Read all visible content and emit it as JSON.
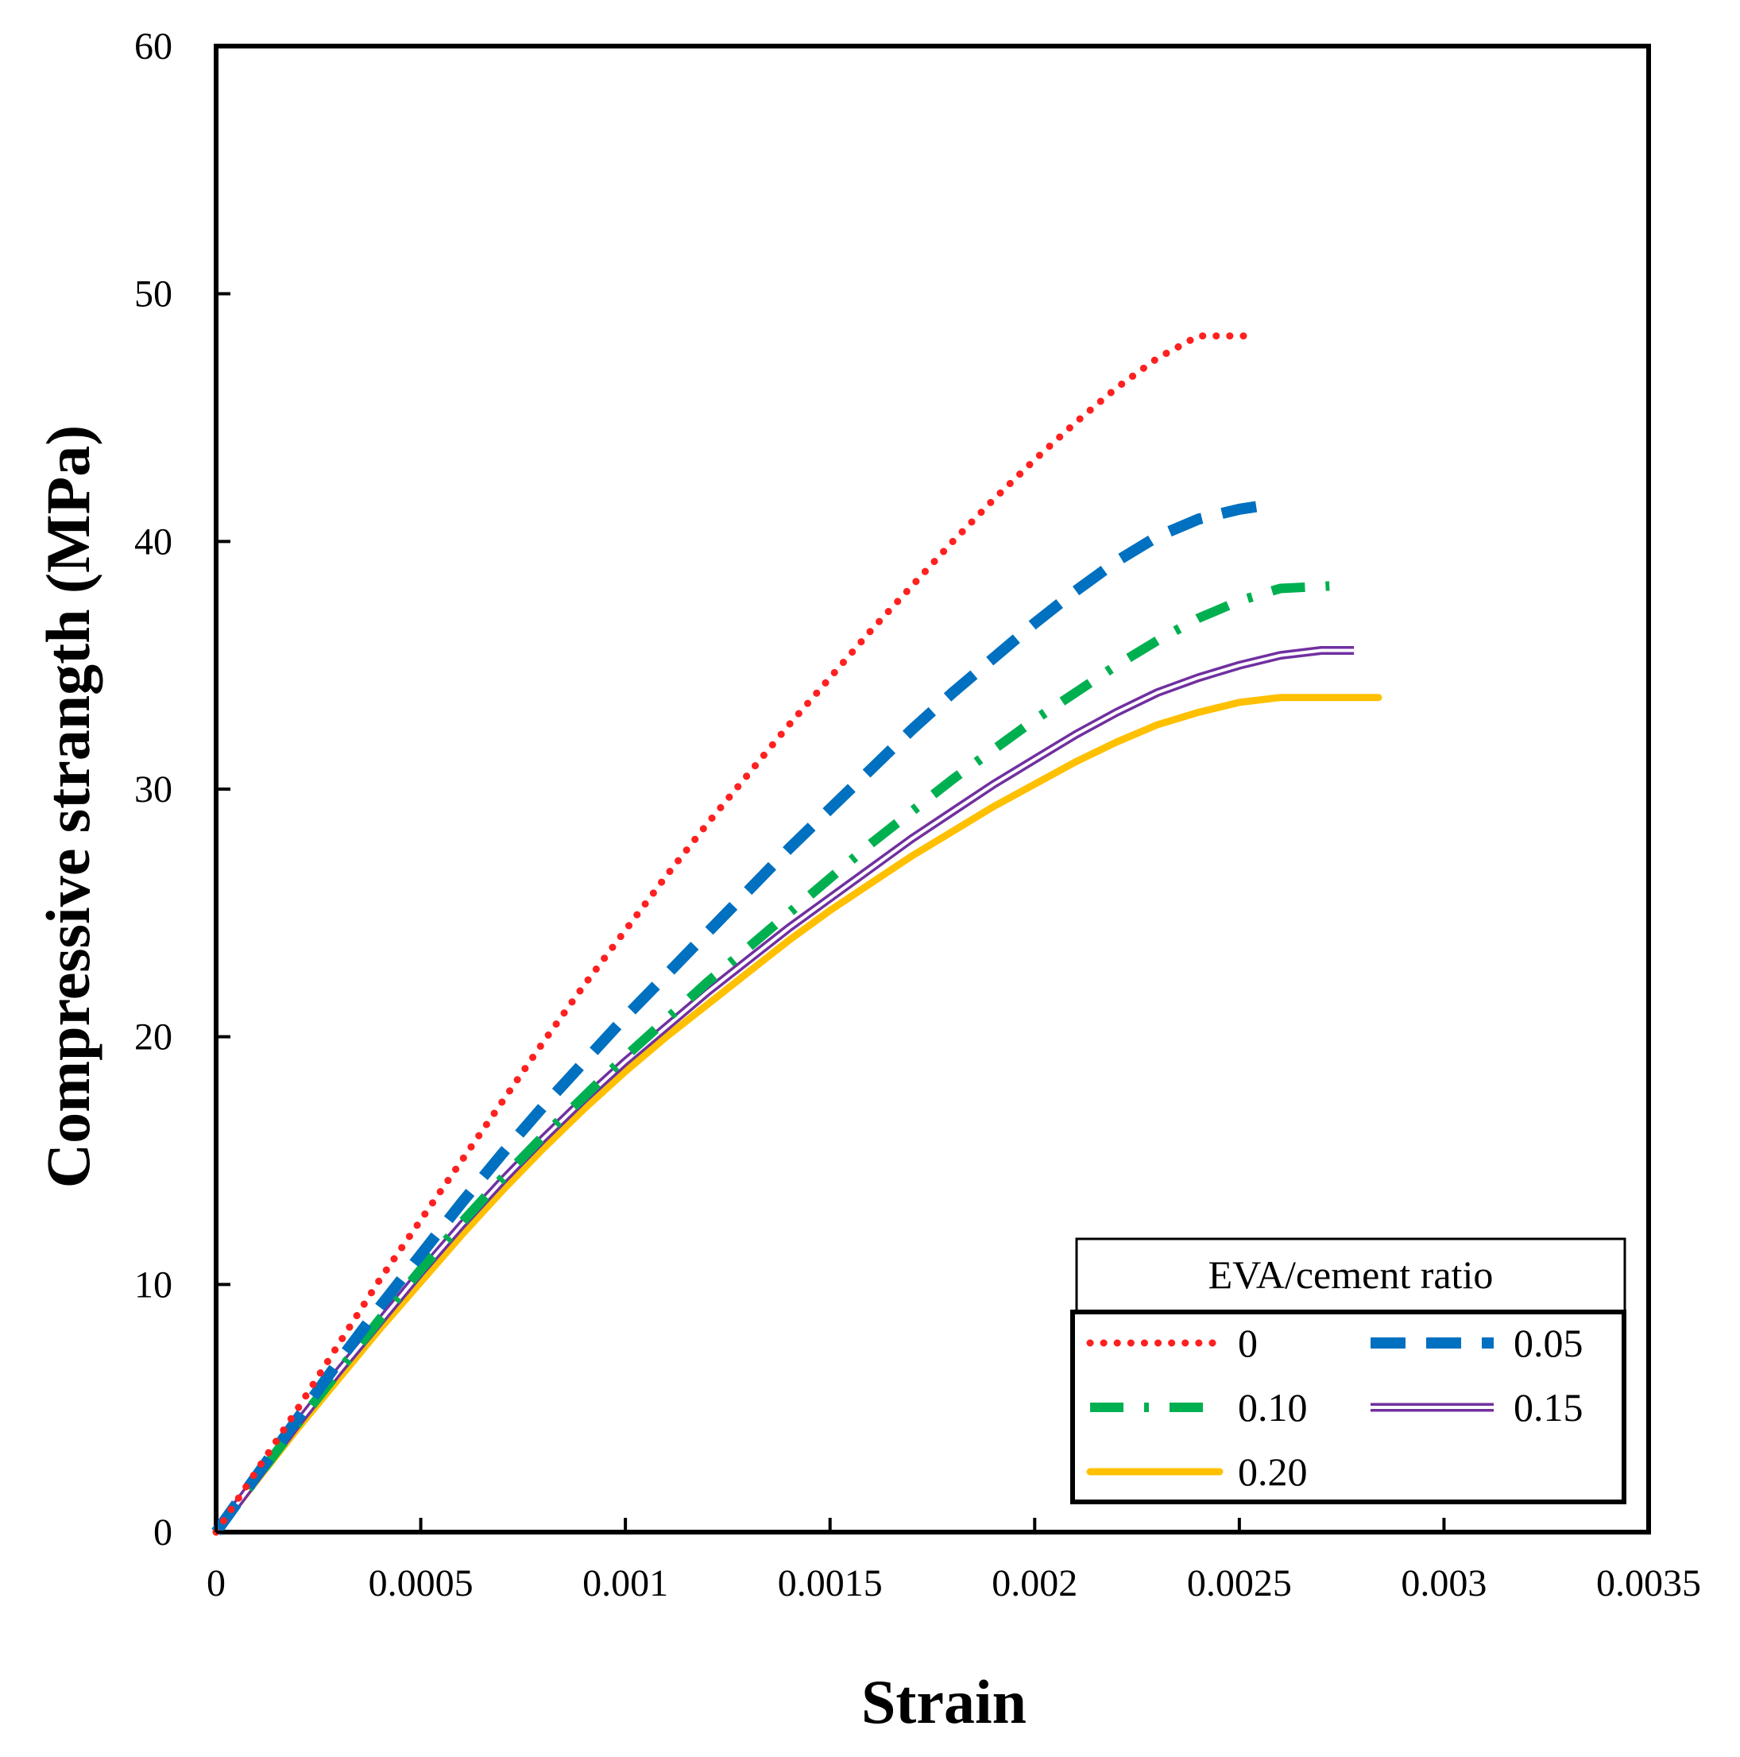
{
  "chart_data": {
    "type": "line",
    "title": "",
    "xlabel": "Strain",
    "ylabel": "Compressive strangth (MPa)",
    "xlim": [
      0,
      0.0035
    ],
    "ylim": [
      0,
      60
    ],
    "xticks": [
      0,
      0.0005,
      0.001,
      0.0015,
      0.002,
      0.0025,
      0.003,
      0.0035
    ],
    "xtick_labels": [
      "0",
      "0.0005",
      "0.001",
      "0.0015",
      "0.002",
      "0.0025",
      "0.003",
      "0.0035"
    ],
    "yticks": [
      0,
      10,
      20,
      30,
      40,
      50,
      60
    ],
    "ytick_labels": [
      "0",
      "10",
      "20",
      "30",
      "40",
      "50",
      "60"
    ],
    "grid": false,
    "legend": {
      "title": "EVA/cement  ratio",
      "position": "bottom-right"
    },
    "series": [
      {
        "name": "0",
        "color": "#ff2020",
        "style": "dotted",
        "x": [
          0,
          0.0001,
          0.0002,
          0.0003,
          0.0004,
          0.0005,
          0.0006,
          0.0007,
          0.0008,
          0.0009,
          0.001,
          0.0011,
          0.0012,
          0.0013,
          0.0014,
          0.0015,
          0.0016,
          0.0017,
          0.0018,
          0.0019,
          0.002,
          0.0021,
          0.0022,
          0.0023,
          0.0024,
          0.00252
        ],
        "y": [
          0,
          2.5,
          5.0,
          7.6,
          10.2,
          12.6,
          15.0,
          17.4,
          19.8,
          22.1,
          24.3,
          26.5,
          28.6,
          30.6,
          32.6,
          34.5,
          36.4,
          38.2,
          40.0,
          41.7,
          43.3,
          44.8,
          46.2,
          47.4,
          48.3,
          48.3
        ]
      },
      {
        "name": "0.05",
        "color": "#0070c0",
        "style": "dashed",
        "x": [
          0,
          0.0001,
          0.0002,
          0.0003,
          0.0004,
          0.0005,
          0.0006,
          0.0007,
          0.0008,
          0.0009,
          0.001,
          0.0011,
          0.0012,
          0.0013,
          0.0014,
          0.0015,
          0.0016,
          0.0017,
          0.0018,
          0.0019,
          0.002,
          0.0021,
          0.0022,
          0.0023,
          0.0024,
          0.0025,
          0.00258
        ],
        "y": [
          0,
          2.3,
          4.6,
          6.9,
          9.1,
          11.2,
          13.3,
          15.3,
          17.2,
          19.0,
          20.8,
          22.5,
          24.2,
          25.9,
          27.6,
          29.2,
          30.8,
          32.4,
          33.9,
          35.3,
          36.7,
          38.0,
          39.2,
          40.2,
          40.9,
          41.3,
          41.5
        ]
      },
      {
        "name": "0.10",
        "color": "#00b050",
        "style": "dashdot",
        "x": [
          0,
          0.0001,
          0.0002,
          0.0003,
          0.0004,
          0.0005,
          0.0006,
          0.0007,
          0.0008,
          0.0009,
          0.001,
          0.0011,
          0.0012,
          0.0013,
          0.0014,
          0.0015,
          0.0016,
          0.0017,
          0.0018,
          0.0019,
          0.002,
          0.0021,
          0.0022,
          0.0023,
          0.0024,
          0.0025,
          0.0026,
          0.00272
        ],
        "y": [
          0,
          2.2,
          4.4,
          6.5,
          8.6,
          10.6,
          12.5,
          14.3,
          16.0,
          17.6,
          19.2,
          20.7,
          22.2,
          23.6,
          25.0,
          26.4,
          27.8,
          29.1,
          30.4,
          31.6,
          32.8,
          33.9,
          35.0,
          36.0,
          36.9,
          37.6,
          38.1,
          38.2
        ]
      },
      {
        "name": "0.15",
        "color": "#7030a0",
        "style": "double",
        "x": [
          0,
          0.0001,
          0.0002,
          0.0003,
          0.0004,
          0.0005,
          0.0006,
          0.0007,
          0.0008,
          0.0009,
          0.001,
          0.0011,
          0.0012,
          0.0013,
          0.0014,
          0.0015,
          0.0016,
          0.0017,
          0.0018,
          0.0019,
          0.002,
          0.0021,
          0.0022,
          0.0023,
          0.0024,
          0.0025,
          0.0026,
          0.0027,
          0.00278
        ],
        "y": [
          0,
          2.2,
          4.4,
          6.5,
          8.5,
          10.5,
          12.4,
          14.2,
          15.9,
          17.5,
          19.0,
          20.4,
          21.8,
          23.1,
          24.4,
          25.6,
          26.8,
          28.0,
          29.1,
          30.2,
          31.2,
          32.2,
          33.1,
          33.9,
          34.5,
          35.0,
          35.4,
          35.6,
          35.6
        ]
      },
      {
        "name": "0.20",
        "color": "#ffc000",
        "style": "solid",
        "x": [
          0,
          0.0001,
          0.0002,
          0.0003,
          0.0004,
          0.0005,
          0.0006,
          0.0007,
          0.0008,
          0.0009,
          0.001,
          0.0011,
          0.0012,
          0.0013,
          0.0014,
          0.0015,
          0.0016,
          0.0017,
          0.0018,
          0.0019,
          0.002,
          0.0021,
          0.0022,
          0.0023,
          0.0024,
          0.0025,
          0.0026,
          0.0027,
          0.0028,
          0.00284
        ],
        "y": [
          0,
          2.1,
          4.2,
          6.2,
          8.2,
          10.1,
          12.0,
          13.8,
          15.5,
          17.1,
          18.6,
          20.0,
          21.3,
          22.6,
          23.9,
          25.1,
          26.2,
          27.3,
          28.3,
          29.3,
          30.2,
          31.1,
          31.9,
          32.6,
          33.1,
          33.5,
          33.7,
          33.7,
          33.7,
          33.7
        ]
      }
    ]
  }
}
